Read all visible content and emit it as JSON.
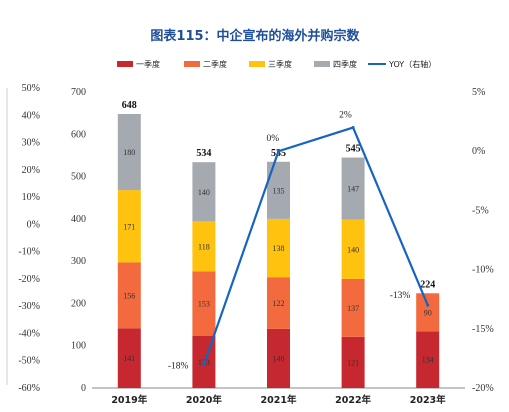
{
  "chart_data": {
    "type": "bar",
    "title": "图表115：中企宣布的海外并购宗数",
    "categories": [
      "2019年",
      "2020年",
      "2021年",
      "2022年",
      "2023年"
    ],
    "series": [
      {
        "name": "一季度",
        "color": "#c5282f",
        "values": [
          141,
          123,
          140,
          121,
          134
        ]
      },
      {
        "name": "二季度",
        "color": "#f26a3d",
        "values": [
          156,
          153,
          122,
          137,
          90
        ]
      },
      {
        "name": "三季度",
        "color": "#ffc20e",
        "values": [
          171,
          118,
          138,
          140,
          null
        ]
      },
      {
        "name": "四季度",
        "color": "#a5a9b0",
        "values": [
          180,
          140,
          135,
          147,
          null
        ]
      }
    ],
    "totals": [
      648,
      534,
      535,
      545,
      224
    ],
    "yoy": {
      "name": "YOY（右轴）",
      "color": "#1565c0",
      "x_categories": [
        "2020年",
        "2021年",
        "2022年",
        "2023年"
      ],
      "values": [
        -18,
        0,
        2,
        -13
      ],
      "labels": [
        "-18%",
        "0%",
        "2%",
        "-13%"
      ]
    },
    "y_left": {
      "min": 0,
      "max": 700,
      "ticks": [
        0,
        100,
        200,
        300,
        400,
        500,
        600,
        700
      ]
    },
    "y_right": {
      "min": -20,
      "max": 5,
      "ticks": [
        "5%",
        "0%",
        "-5%",
        "-10%",
        "-15%",
        "-20%"
      ],
      "values": [
        5,
        0,
        -5,
        -10,
        -15,
        -20
      ]
    },
    "y_far_left": {
      "ticks": [
        "50%",
        "40%",
        "30%",
        "20%",
        "10%",
        "0%",
        "-10%",
        "-20%",
        "-30%",
        "-40%",
        "-50%",
        "-60%"
      ]
    },
    "legend_position": "top"
  }
}
